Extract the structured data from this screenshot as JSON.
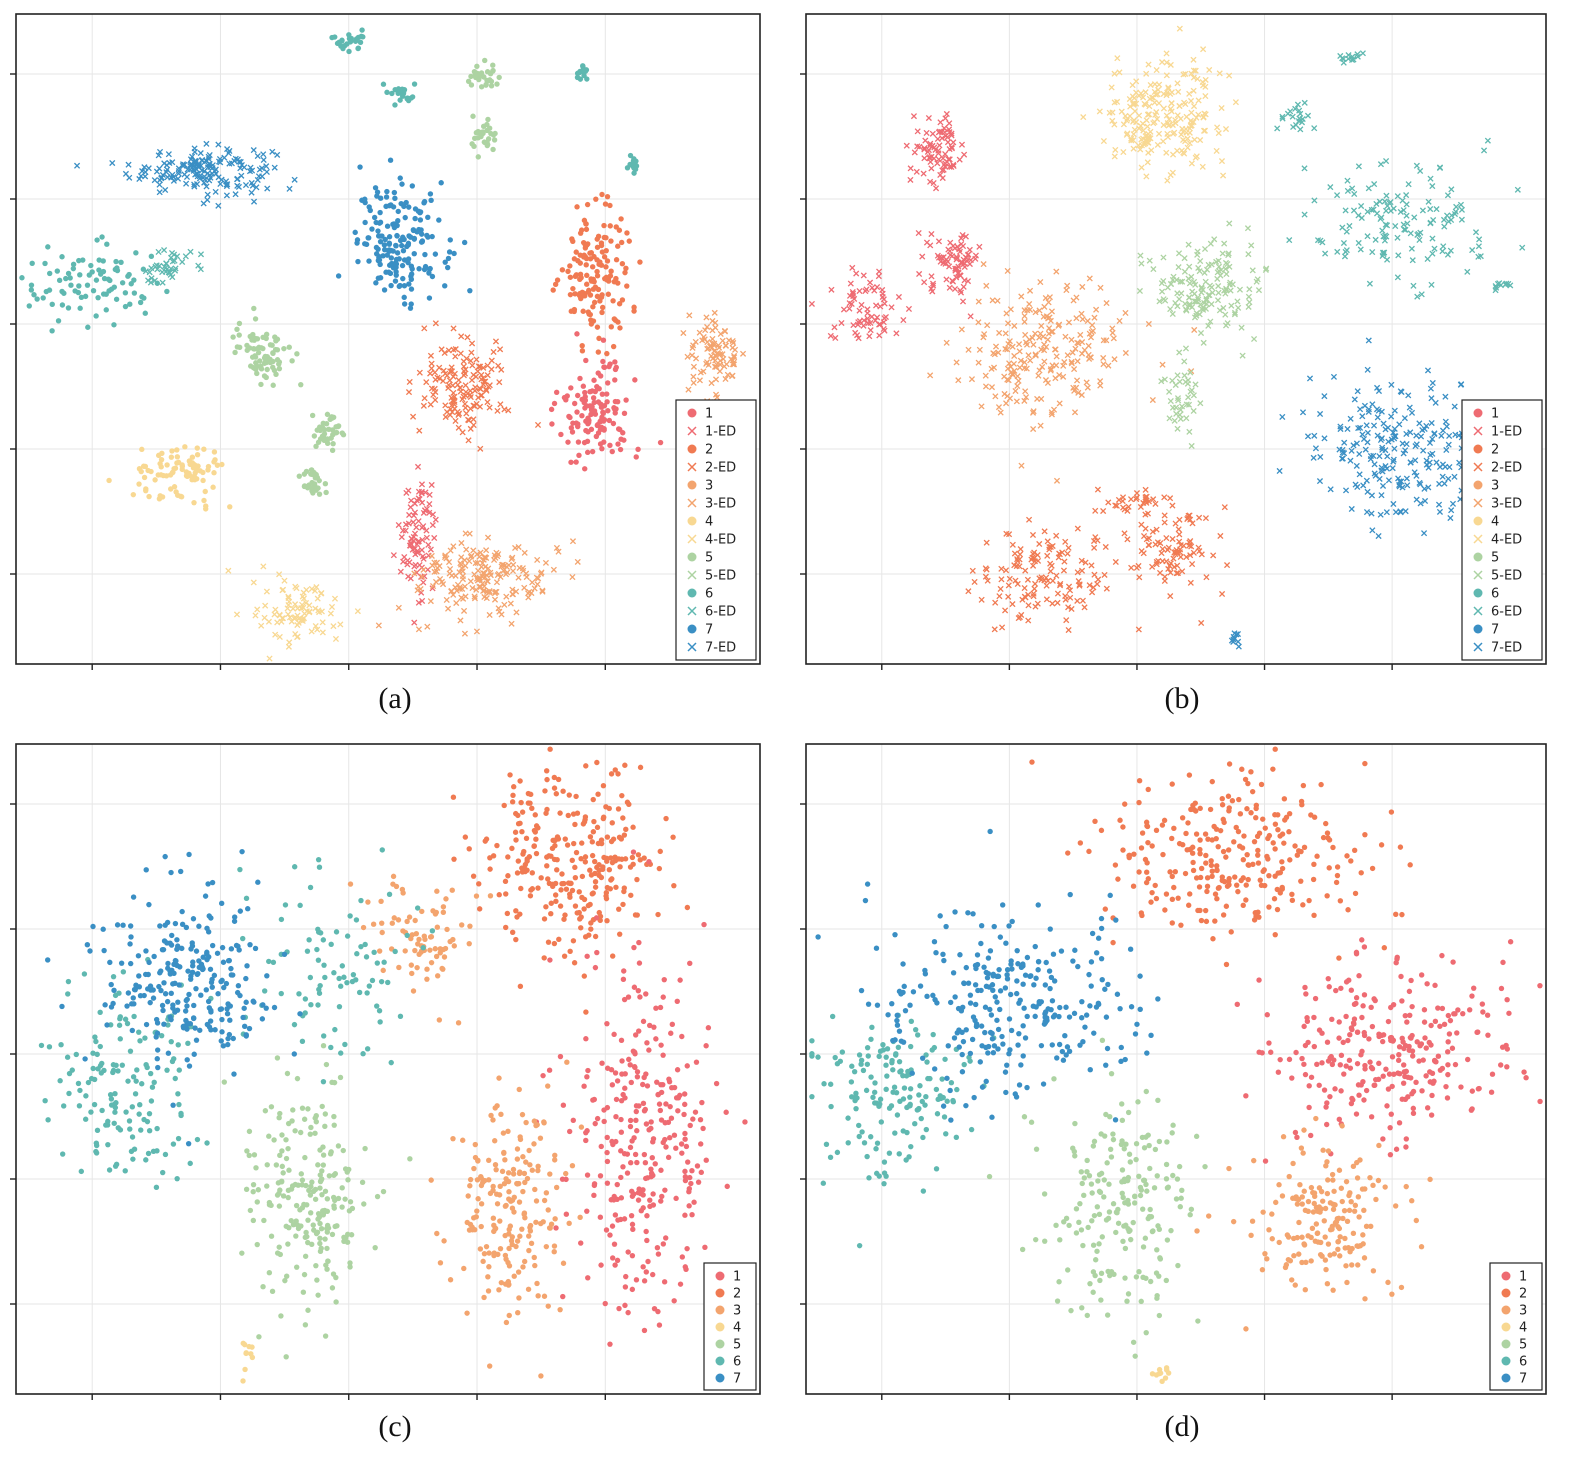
{
  "figure": {
    "palette": {
      "1": "#ee6b72",
      "2": "#f07a52",
      "3": "#f3a46e",
      "4": "#f8d892",
      "5": "#add3a2",
      "6": "#5fb8b0",
      "7": "#3a8fc4"
    }
  },
  "chart_data": [
    {
      "id": "a",
      "type": "scatter",
      "caption": "(a)",
      "legend": [
        "1",
        "1-ED",
        "2",
        "2-ED",
        "3",
        "3-ED",
        "4",
        "4-ED",
        "5",
        "5-ED",
        "6",
        "6-ED",
        "7",
        "7-ED"
      ],
      "grid": true,
      "axis_tick_labels": false,
      "legend_position": "bottom-right",
      "xlim": [
        0,
        100
      ],
      "ylim": [
        0,
        100
      ],
      "clusters": [
        {
          "label": "7",
          "ed": true,
          "x": 25,
          "y": 76,
          "rx": 8,
          "ry": 3,
          "n": 170
        },
        {
          "label": "7",
          "ed": false,
          "x": 52,
          "y": 65,
          "rx": 5,
          "ry": 7,
          "n": 180
        },
        {
          "label": "6",
          "ed": false,
          "x": 10,
          "y": 58,
          "rx": 8,
          "ry": 5,
          "n": 90
        },
        {
          "label": "6",
          "ed": true,
          "x": 20,
          "y": 61,
          "rx": 3,
          "ry": 3,
          "n": 40
        },
        {
          "label": "6",
          "ed": false,
          "x": 45,
          "y": 96,
          "rx": 2,
          "ry": 1.5,
          "n": 25
        },
        {
          "label": "6",
          "ed": false,
          "x": 52,
          "y": 88,
          "rx": 1.5,
          "ry": 1.5,
          "n": 20
        },
        {
          "label": "6",
          "ed": false,
          "x": 76,
          "y": 91,
          "rx": 1,
          "ry": 1,
          "n": 15
        },
        {
          "label": "6",
          "ed": false,
          "x": 83,
          "y": 77,
          "rx": 1,
          "ry": 1,
          "n": 12
        },
        {
          "label": "5",
          "ed": false,
          "x": 33,
          "y": 48,
          "rx": 3,
          "ry": 4,
          "n": 80
        },
        {
          "label": "5",
          "ed": false,
          "x": 42,
          "y": 36,
          "rx": 2,
          "ry": 2.5,
          "n": 40
        },
        {
          "label": "5",
          "ed": false,
          "x": 40,
          "y": 28,
          "rx": 1.5,
          "ry": 2,
          "n": 30
        },
        {
          "label": "5",
          "ed": false,
          "x": 63,
          "y": 90,
          "rx": 2,
          "ry": 1.5,
          "n": 30
        },
        {
          "label": "5",
          "ed": false,
          "x": 63,
          "y": 81,
          "rx": 1.5,
          "ry": 2.5,
          "n": 30
        },
        {
          "label": "4",
          "ed": false,
          "x": 22,
          "y": 29,
          "rx": 5,
          "ry": 4,
          "n": 90
        },
        {
          "label": "4",
          "ed": true,
          "x": 38,
          "y": 8,
          "rx": 5,
          "ry": 4,
          "n": 90
        },
        {
          "label": "2",
          "ed": true,
          "x": 60,
          "y": 43,
          "rx": 5,
          "ry": 6,
          "n": 150
        },
        {
          "label": "2",
          "ed": false,
          "x": 78,
          "y": 60,
          "rx": 4,
          "ry": 9,
          "n": 150
        },
        {
          "label": "1",
          "ed": false,
          "x": 78,
          "y": 39,
          "rx": 4,
          "ry": 6,
          "n": 130
        },
        {
          "label": "1",
          "ed": true,
          "x": 54,
          "y": 20,
          "rx": 2,
          "ry": 7,
          "n": 90
        },
        {
          "label": "3",
          "ed": true,
          "x": 63,
          "y": 13,
          "rx": 8,
          "ry": 5,
          "n": 190
        },
        {
          "label": "3",
          "ed": true,
          "x": 94,
          "y": 48,
          "rx": 3,
          "ry": 6,
          "n": 90
        }
      ]
    },
    {
      "id": "b",
      "type": "scatter",
      "caption": "(b)",
      "legend": [
        "1",
        "1-ED",
        "2",
        "2-ED",
        "3",
        "3-ED",
        "4",
        "4-ED",
        "5",
        "5-ED",
        "6",
        "6-ED",
        "7",
        "7-ED"
      ],
      "grid": true,
      "axis_tick_labels": false,
      "legend_position": "bottom-right",
      "xlim": [
        0,
        100
      ],
      "ylim": [
        0,
        100
      ],
      "clusters": [
        {
          "label": "1",
          "ed": true,
          "x": 18,
          "y": 79,
          "rx": 3,
          "ry": 4,
          "n": 80
        },
        {
          "label": "1",
          "ed": true,
          "x": 20,
          "y": 62,
          "rx": 3,
          "ry": 4,
          "n": 80
        },
        {
          "label": "1",
          "ed": true,
          "x": 8,
          "y": 55,
          "rx": 4,
          "ry": 5,
          "n": 70
        },
        {
          "label": "4",
          "ed": true,
          "x": 48,
          "y": 84,
          "rx": 7,
          "ry": 7,
          "n": 220
        },
        {
          "label": "3",
          "ed": true,
          "x": 32,
          "y": 48,
          "rx": 9,
          "ry": 9,
          "n": 220
        },
        {
          "label": "5",
          "ed": true,
          "x": 54,
          "y": 58,
          "rx": 6,
          "ry": 6,
          "n": 150
        },
        {
          "label": "5",
          "ed": true,
          "x": 51,
          "y": 42,
          "rx": 2,
          "ry": 5,
          "n": 40
        },
        {
          "label": "2",
          "ed": true,
          "x": 33,
          "y": 14,
          "rx": 8,
          "ry": 6,
          "n": 140
        },
        {
          "label": "2",
          "ed": true,
          "x": 50,
          "y": 17,
          "rx": 5,
          "ry": 6,
          "n": 90
        },
        {
          "label": "2",
          "ed": true,
          "x": 44,
          "y": 25,
          "rx": 4,
          "ry": 1.5,
          "n": 30
        },
        {
          "label": "6",
          "ed": true,
          "x": 80,
          "y": 68,
          "rx": 10,
          "ry": 8,
          "n": 140
        },
        {
          "label": "6",
          "ed": true,
          "x": 66,
          "y": 84,
          "rx": 2,
          "ry": 2,
          "n": 20
        },
        {
          "label": "6",
          "ed": true,
          "x": 73,
          "y": 93,
          "rx": 2,
          "ry": 1,
          "n": 12
        },
        {
          "label": "6",
          "ed": true,
          "x": 94,
          "y": 58,
          "rx": 1.5,
          "ry": 1,
          "n": 10
        },
        {
          "label": "7",
          "ed": true,
          "x": 80,
          "y": 33,
          "rx": 10,
          "ry": 10,
          "n": 220
        },
        {
          "label": "7",
          "ed": true,
          "x": 58,
          "y": 4,
          "rx": 1,
          "ry": 1,
          "n": 10
        }
      ]
    },
    {
      "id": "c",
      "type": "scatter",
      "caption": "(c)",
      "legend": [
        "1",
        "2",
        "3",
        "4",
        "5",
        "6",
        "7"
      ],
      "grid": true,
      "axis_tick_labels": false,
      "legend_position": "bottom-right",
      "xlim": [
        0,
        100
      ],
      "ylim": [
        0,
        100
      ],
      "clusters": [
        {
          "label": "2",
          "ed": false,
          "x": 75,
          "y": 82,
          "rx": 10,
          "ry": 12,
          "n": 280
        },
        {
          "label": "1",
          "ed": false,
          "x": 84,
          "y": 40,
          "rx": 8,
          "ry": 22,
          "n": 300
        },
        {
          "label": "3",
          "ed": false,
          "x": 66,
          "y": 28,
          "rx": 6,
          "ry": 14,
          "n": 200
        },
        {
          "label": "3",
          "ed": false,
          "x": 55,
          "y": 70,
          "rx": 6,
          "ry": 8,
          "n": 80
        },
        {
          "label": "5",
          "ed": false,
          "x": 39,
          "y": 30,
          "rx": 7,
          "ry": 14,
          "n": 220
        },
        {
          "label": "6",
          "ed": false,
          "x": 15,
          "y": 47,
          "rx": 8,
          "ry": 14,
          "n": 150
        },
        {
          "label": "6",
          "ed": false,
          "x": 42,
          "y": 66,
          "rx": 9,
          "ry": 12,
          "n": 90
        },
        {
          "label": "7",
          "ed": false,
          "x": 23,
          "y": 63,
          "rx": 10,
          "ry": 12,
          "n": 250
        },
        {
          "label": "4",
          "ed": false,
          "x": 31,
          "y": 6,
          "rx": 0.8,
          "ry": 2.5,
          "n": 10
        }
      ]
    },
    {
      "id": "d",
      "type": "scatter",
      "caption": "(d)",
      "legend": [
        "1",
        "2",
        "3",
        "4",
        "5",
        "6",
        "7"
      ],
      "grid": true,
      "axis_tick_labels": false,
      "legend_position": "bottom-right",
      "xlim": [
        0,
        100
      ],
      "ylim": [
        0,
        100
      ],
      "clusters": [
        {
          "label": "2",
          "ed": false,
          "x": 58,
          "y": 83,
          "rx": 16,
          "ry": 11,
          "n": 280
        },
        {
          "label": "1",
          "ed": false,
          "x": 78,
          "y": 53,
          "rx": 14,
          "ry": 12,
          "n": 280
        },
        {
          "label": "3",
          "ed": false,
          "x": 70,
          "y": 27,
          "rx": 9,
          "ry": 9,
          "n": 180
        },
        {
          "label": "5",
          "ed": false,
          "x": 42,
          "y": 30,
          "rx": 9,
          "ry": 15,
          "n": 200
        },
        {
          "label": "6",
          "ed": false,
          "x": 12,
          "y": 45,
          "rx": 9,
          "ry": 12,
          "n": 160
        },
        {
          "label": "7",
          "ed": false,
          "x": 27,
          "y": 60,
          "rx": 15,
          "ry": 12,
          "n": 280
        },
        {
          "label": "4",
          "ed": false,
          "x": 48,
          "y": 3,
          "rx": 1,
          "ry": 0.8,
          "n": 10
        }
      ]
    }
  ]
}
